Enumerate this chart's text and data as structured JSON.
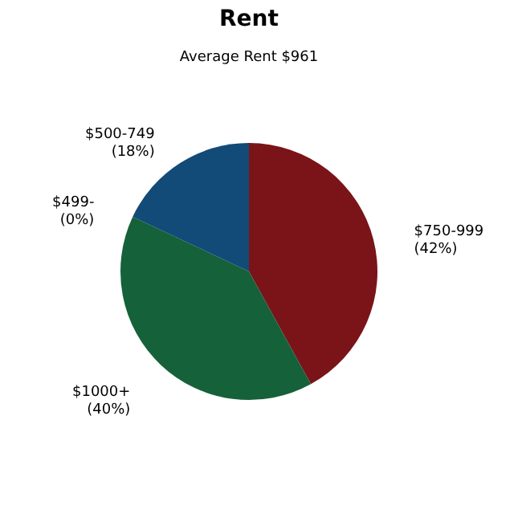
{
  "chart_data": {
    "type": "pie",
    "title": "Rent",
    "subtitle": "Average Rent  $961",
    "categories": [
      "$750-999",
      "$1000+",
      "$499-",
      "$500-749"
    ],
    "values": [
      42,
      40,
      0,
      18
    ],
    "value_labels": [
      "(42%)",
      "(40%)",
      "(0%)",
      "(18%)"
    ],
    "colors": [
      "#7a1418",
      "#15613a",
      "#1e8a4a",
      "#124a78"
    ],
    "legend": false
  }
}
